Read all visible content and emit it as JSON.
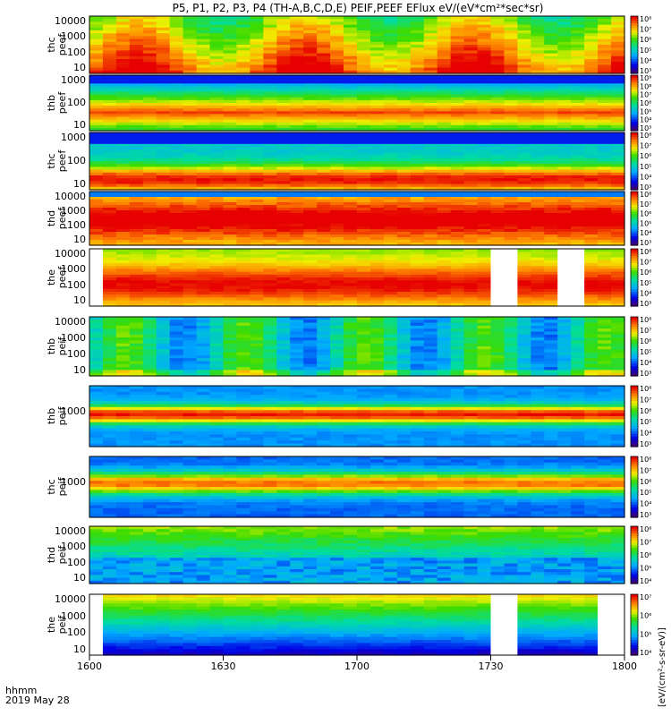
{
  "title": "P5, P1, P2, P3, P4 (TH-A,B,C,D,E) PEIF,PEEF EFlux eV/(eV*cm²*sec*sr)",
  "colorbar_units": "[eV/(cm²-s-sr-eV)]",
  "footer": {
    "time_unit": "hhmm",
    "date": "2019 May 28"
  },
  "chart_data": {
    "type": "heatmap",
    "x_range": [
      1600,
      1800
    ],
    "x_ticks": [
      "1600",
      "1630",
      "1700",
      "1730",
      "1800"
    ],
    "panels": [
      {
        "label": "thc\npeef",
        "y_ticks": [
          "10000",
          "1000",
          "100",
          "10"
        ],
        "cbar_ticks": [
          "10⁸",
          "10⁷",
          "10⁶",
          "10⁵",
          "10⁴",
          "10³"
        ]
      },
      {
        "label": "thb\npeef",
        "y_ticks": [
          "1000",
          "100",
          "10"
        ],
        "cbar_ticks": [
          "10⁹",
          "10⁸",
          "10⁷",
          "10⁶",
          "10⁵",
          "10⁴",
          "10³"
        ]
      },
      {
        "label": "thc\npeef",
        "y_ticks": [
          "1000",
          "100",
          "10"
        ],
        "cbar_ticks": [
          "10⁸",
          "10⁷",
          "10⁶",
          "10⁵",
          "10⁴",
          "10³"
        ]
      },
      {
        "label": "thd\npeef",
        "y_ticks": [
          "10000",
          "1000",
          "100",
          "10"
        ],
        "cbar_ticks": [
          "10⁸",
          "10⁷",
          "10⁶",
          "10⁵",
          "10⁴",
          "10³"
        ]
      },
      {
        "label": "the\npeef",
        "y_ticks": [
          "10000",
          "1000",
          "100",
          "10"
        ],
        "cbar_ticks": [
          "10⁸",
          "10⁷",
          "10⁶",
          "10⁵",
          "10⁴",
          "10³"
        ]
      },
      {
        "label": "thb\npeif",
        "y_ticks": [
          "10000",
          "1000",
          "100",
          "10"
        ],
        "cbar_ticks": [
          "10⁸",
          "10⁷",
          "10⁶",
          "10⁵",
          "10⁴",
          "10³"
        ]
      },
      {
        "label": "thb\npeif",
        "y_ticks": [
          "1000"
        ],
        "cbar_ticks": [
          "10⁸",
          "10⁷",
          "10⁶",
          "10⁵",
          "10⁴",
          "10³"
        ]
      },
      {
        "label": "thc\npeif",
        "y_ticks": [
          "1000"
        ],
        "cbar_ticks": [
          "10⁸",
          "10⁷",
          "10⁶",
          "10⁵",
          "10⁴",
          "10³"
        ]
      },
      {
        "label": "thd\npeif",
        "y_ticks": [
          "10000",
          "1000",
          "100",
          "10"
        ],
        "cbar_ticks": [
          "10⁸",
          "10⁷",
          "10⁶",
          "10⁵",
          "10⁴"
        ]
      },
      {
        "label": "the\npeif",
        "y_ticks": [
          "10000",
          "1000",
          "100",
          "10"
        ],
        "cbar_ticks": [
          "10⁷",
          "10⁶",
          "10⁵",
          "10⁴"
        ]
      }
    ]
  }
}
